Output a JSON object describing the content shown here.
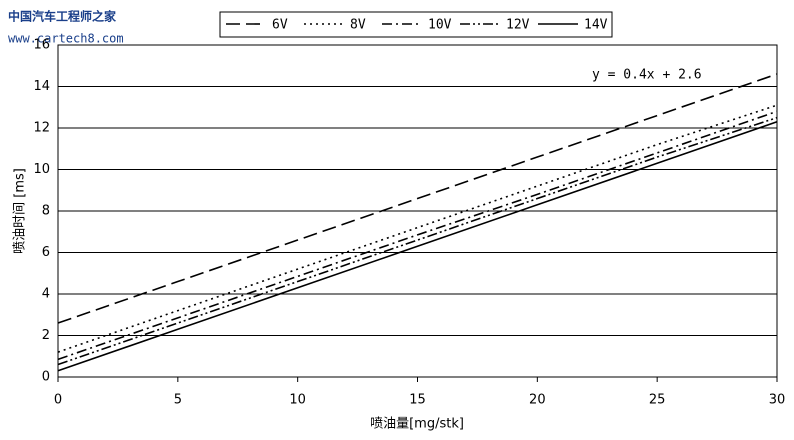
{
  "watermark": {
    "title": "中国汽车工程师之家",
    "url": "www.cartech8.com"
  },
  "chart_data": {
    "type": "line",
    "x_label": "喷油量[mg/stk]",
    "y_label": "喷油时间 [ms]",
    "annotation": "y = 0.4x + 2.6",
    "x": [
      0,
      5,
      10,
      15,
      20,
      25,
      30
    ],
    "series": [
      {
        "name": "6V",
        "color": "#000000",
        "style": "dashed",
        "values": [
          2.6,
          4.6,
          6.6,
          8.6,
          10.6,
          12.6,
          14.6
        ]
      },
      {
        "name": "8V",
        "color": "#000000",
        "style": "dotted",
        "values": [
          1.2,
          3.2,
          5.2,
          7.2,
          9.2,
          11.2,
          13.1
        ]
      },
      {
        "name": "10V",
        "color": "#000000",
        "style": "dashdot",
        "values": [
          0.85,
          2.85,
          4.85,
          6.85,
          8.8,
          10.8,
          12.8
        ]
      },
      {
        "name": "12V",
        "color": "#000000",
        "style": "dashdotdot",
        "values": [
          0.6,
          2.6,
          4.6,
          6.6,
          8.6,
          10.6,
          12.5
        ]
      },
      {
        "name": "14V",
        "color": "#000000",
        "style": "solid",
        "values": [
          0.3,
          2.3,
          4.3,
          6.3,
          8.3,
          10.3,
          12.3
        ]
      }
    ],
    "xlim": [
      0,
      30
    ],
    "xticks": [
      0,
      5,
      10,
      15,
      20,
      25,
      30
    ],
    "ylim": [
      0,
      16
    ],
    "yticks": [
      0,
      2,
      4,
      6,
      8,
      10,
      12,
      14,
      16
    ],
    "grid": true,
    "legend": "top"
  }
}
